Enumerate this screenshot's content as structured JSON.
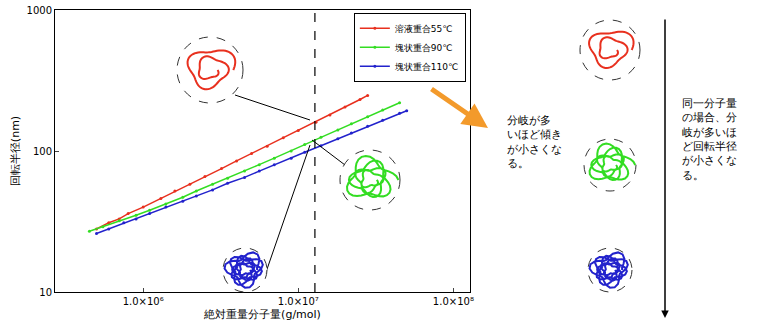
{
  "chart_data": {
    "type": "scatter",
    "log": true,
    "grid": false,
    "legend": "top right",
    "x_label": "絶対重量分子量(g/mol)",
    "y_label": "回転半径(nm)",
    "xlim": [
      270000,
      128000000
    ],
    "ylim": [
      10,
      1000
    ],
    "xticks": [
      {
        "value": 1000000,
        "label": "1.0×10⁶"
      },
      {
        "value": 10000000,
        "label": "1.0×10⁷"
      },
      {
        "value": 100000000,
        "label": "1.0×10⁸"
      }
    ],
    "yticks": [
      10,
      100,
      1000
    ],
    "vertical_line": {
      "x": 12800000,
      "line_style": "dash"
    },
    "annotations": [
      {
        "lines": [
          "分岐が多",
          "いほど傾き",
          "が小さくな",
          "る。"
        ]
      },
      {
        "lines": [
          "同一分子量",
          "の場合、分",
          "岐が多いほ",
          "ど回転半径",
          "が小さくな",
          "る。"
        ]
      }
    ],
    "series": [
      {
        "name": "溶液重合55℃",
        "color": "#e8301e",
        "marker": "circle",
        "line_style": "solid",
        "x": [
          500000,
          600000,
          700000,
          800000,
          1000000,
          1300000,
          1600000,
          2000000,
          2500000,
          3200000,
          4000000,
          5000000,
          6300000,
          8000000,
          10000000,
          13000000,
          16000000,
          20000000,
          25000000,
          28000000
        ],
        "values": [
          28,
          31,
          33,
          36,
          40,
          46,
          52,
          58,
          66,
          75,
          85,
          96,
          108,
          124,
          140,
          160,
          180,
          205,
          232,
          248
        ]
      },
      {
        "name": "塊状重合90℃",
        "color": "#33dd22",
        "marker": "circle",
        "line_style": "solid",
        "x": [
          450000,
          550000,
          700000,
          900000,
          1100000,
          1400000,
          1800000,
          2200000,
          2800000,
          3500000,
          4500000,
          5600000,
          7000000,
          9000000,
          11000000,
          14000000,
          18000000,
          22000000,
          28000000,
          35000000,
          45000000
        ],
        "values": [
          27,
          29,
          32,
          35,
          38,
          42,
          47,
          52,
          58,
          64,
          72,
          80,
          89,
          100,
          111,
          125,
          141,
          156,
          175,
          195,
          220
        ]
      },
      {
        "name": "塊状重合110℃",
        "color": "#2222cc",
        "marker": "circle",
        "line_style": "solid",
        "x": [
          500000,
          600000,
          750000,
          900000,
          1100000,
          1400000,
          1800000,
          2200000,
          2800000,
          3500000,
          4500000,
          5600000,
          7000000,
          9000000,
          11000000,
          14000000,
          18000000,
          22000000,
          28000000,
          35000000,
          45000000,
          50000000
        ],
        "values": [
          26,
          28,
          31,
          33,
          36,
          40,
          44,
          48,
          53,
          59,
          65,
          72,
          80,
          89,
          98,
          109,
          122,
          134,
          150,
          165,
          185,
          193
        ]
      }
    ]
  }
}
